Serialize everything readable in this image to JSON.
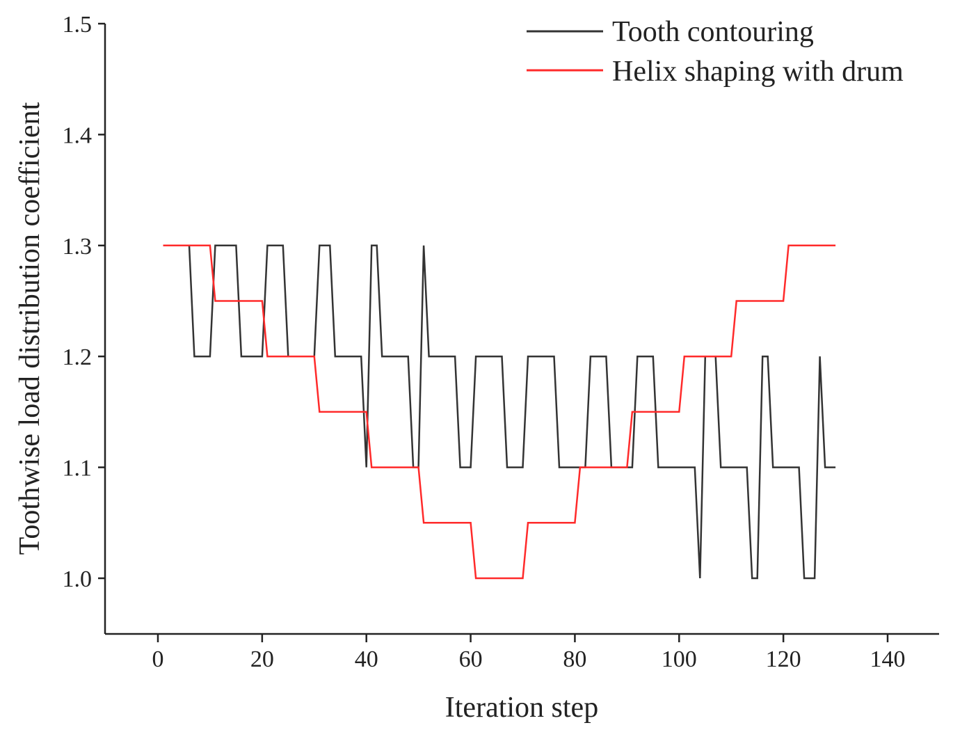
{
  "chart_data": {
    "type": "line",
    "title": "",
    "xlabel": "Iteration step",
    "ylabel": "Toothwise load distribution coefficient",
    "xlim": [
      -10,
      150
    ],
    "ylim": [
      0.95,
      1.5
    ],
    "xticks": [
      0,
      20,
      40,
      60,
      80,
      100,
      120,
      140
    ],
    "xtick_labels": [
      "0",
      "20",
      "40",
      "60",
      "80",
      "100",
      "120",
      "140"
    ],
    "yticks": [
      1.0,
      1.1,
      1.2,
      1.3,
      1.4,
      1.5
    ],
    "ytick_labels": [
      "1.0",
      "1.1",
      "1.2",
      "1.3",
      "1.4",
      "1.5"
    ],
    "grid": false,
    "legend_position": "top-right",
    "series": [
      {
        "name": "Tooth contouring",
        "color": "#333333",
        "points": [
          [
            1,
            1.3
          ],
          [
            6,
            1.3
          ],
          [
            7,
            1.2
          ],
          [
            10,
            1.2
          ],
          [
            11,
            1.3
          ],
          [
            15,
            1.3
          ],
          [
            16,
            1.2
          ],
          [
            20,
            1.2
          ],
          [
            21,
            1.3
          ],
          [
            24,
            1.3
          ],
          [
            25,
            1.2
          ],
          [
            30,
            1.2
          ],
          [
            31,
            1.3
          ],
          [
            33,
            1.3
          ],
          [
            34,
            1.2
          ],
          [
            39,
            1.2
          ],
          [
            40,
            1.1
          ],
          [
            41,
            1.3
          ],
          [
            42,
            1.3
          ],
          [
            43,
            1.2
          ],
          [
            48,
            1.2
          ],
          [
            49,
            1.1
          ],
          [
            50,
            1.1
          ],
          [
            51,
            1.3
          ],
          [
            52,
            1.2
          ],
          [
            57,
            1.2
          ],
          [
            58,
            1.1
          ],
          [
            60,
            1.1
          ],
          [
            61,
            1.2
          ],
          [
            66,
            1.2
          ],
          [
            67,
            1.1
          ],
          [
            70,
            1.1
          ],
          [
            71,
            1.2
          ],
          [
            76,
            1.2
          ],
          [
            77,
            1.1
          ],
          [
            82,
            1.1
          ],
          [
            83,
            1.2
          ],
          [
            86,
            1.2
          ],
          [
            87,
            1.1
          ],
          [
            90,
            1.1
          ],
          [
            91,
            1.1
          ],
          [
            92,
            1.2
          ],
          [
            95,
            1.2
          ],
          [
            96,
            1.1
          ],
          [
            101,
            1.1
          ],
          [
            103,
            1.1
          ],
          [
            104,
            1.0
          ],
          [
            105,
            1.2
          ],
          [
            107,
            1.2
          ],
          [
            108,
            1.1
          ],
          [
            113,
            1.1
          ],
          [
            114,
            1.0
          ],
          [
            115,
            1.0
          ],
          [
            116,
            1.2
          ],
          [
            117,
            1.2
          ],
          [
            118,
            1.1
          ],
          [
            123,
            1.1
          ],
          [
            124,
            1.0
          ],
          [
            126,
            1.0
          ],
          [
            127,
            1.2
          ],
          [
            128,
            1.1
          ],
          [
            130,
            1.1
          ]
        ]
      },
      {
        "name": "Helix shaping with drum",
        "color": "#ff2a2a",
        "points": [
          [
            1,
            1.3
          ],
          [
            10,
            1.3
          ],
          [
            11,
            1.25
          ],
          [
            20,
            1.25
          ],
          [
            21,
            1.2
          ],
          [
            30,
            1.2
          ],
          [
            31,
            1.15
          ],
          [
            40,
            1.15
          ],
          [
            41,
            1.1
          ],
          [
            50,
            1.1
          ],
          [
            51,
            1.05
          ],
          [
            60,
            1.05
          ],
          [
            61,
            1.0
          ],
          [
            70,
            1.0
          ],
          [
            71,
            1.05
          ],
          [
            80,
            1.05
          ],
          [
            81,
            1.1
          ],
          [
            90,
            1.1
          ],
          [
            91,
            1.15
          ],
          [
            100,
            1.15
          ],
          [
            101,
            1.2
          ],
          [
            110,
            1.2
          ],
          [
            111,
            1.25
          ],
          [
            120,
            1.25
          ],
          [
            121,
            1.3
          ],
          [
            130,
            1.3
          ]
        ]
      }
    ]
  }
}
